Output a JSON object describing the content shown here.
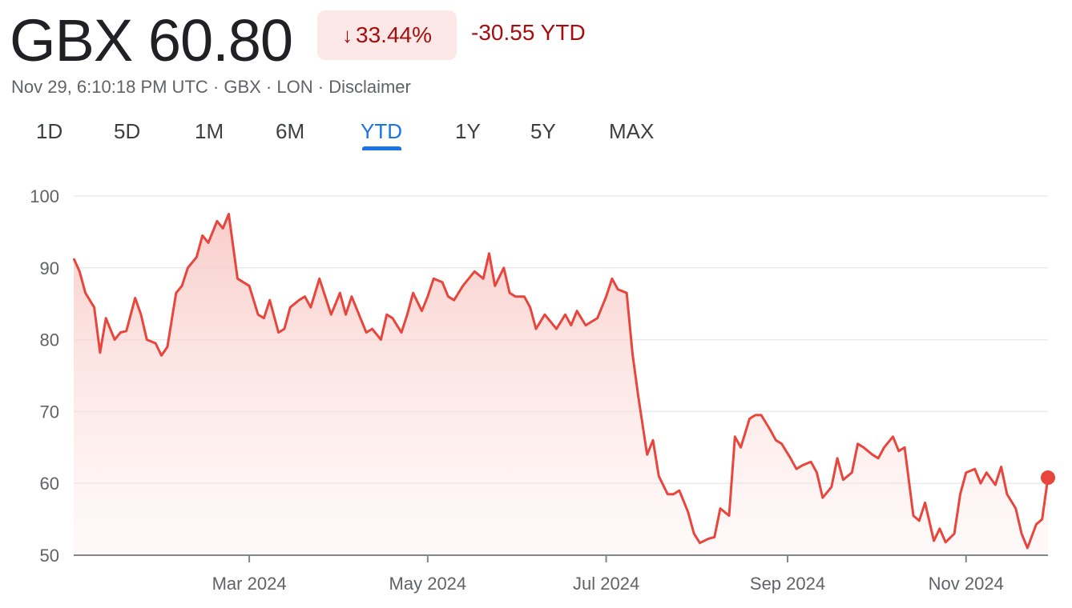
{
  "quote": {
    "price": "GBX 60.80",
    "change_pct": "33.44%",
    "change_arrow": "↓",
    "change_abs": "-30.55 YTD",
    "timestamp": "Nov 29, 6:10:18 PM UTC",
    "currency": "GBX",
    "exchange": "LON",
    "disclaimer": "Disclaimer",
    "separator": " · "
  },
  "tabs": [
    {
      "label": "1D",
      "active": false
    },
    {
      "label": "5D",
      "active": false
    },
    {
      "label": "1M",
      "active": false
    },
    {
      "label": "6M",
      "active": false
    },
    {
      "label": "YTD",
      "active": true
    },
    {
      "label": "1Y",
      "active": false
    },
    {
      "label": "5Y",
      "active": false
    },
    {
      "label": "MAX",
      "active": false
    }
  ],
  "colors": {
    "line": "#e8453c",
    "fill_top": "#f8c8c4",
    "grid": "#e8eaed",
    "axis": "#80868b",
    "negative": "#a50e0e",
    "accent": "#1a73e8"
  },
  "chart_data": {
    "type": "area",
    "ylim": [
      50,
      100
    ],
    "yticks": [
      50,
      60,
      70,
      80,
      90,
      100
    ],
    "xlim": [
      "2024-01-01",
      "2024-11-29"
    ],
    "xticks": [
      {
        "label": "Mar 2024",
        "date": "2024-03-01"
      },
      {
        "label": "May 2024",
        "date": "2024-05-01"
      },
      {
        "label": "Jul 2024",
        "date": "2024-07-01"
      },
      {
        "label": "Sep 2024",
        "date": "2024-09-01"
      },
      {
        "label": "Nov 2024",
        "date": "2024-11-01"
      }
    ],
    "series": [
      {
        "points": [
          [
            "2024-01-01",
            91.3
          ],
          [
            "2024-01-03",
            89.5
          ],
          [
            "2024-01-05",
            86.5
          ],
          [
            "2024-01-08",
            84.5
          ],
          [
            "2024-01-10",
            78.2
          ],
          [
            "2024-01-12",
            83.0
          ],
          [
            "2024-01-15",
            80.0
          ],
          [
            "2024-01-17",
            81.0
          ],
          [
            "2024-01-19",
            81.2
          ],
          [
            "2024-01-22",
            85.8
          ],
          [
            "2024-01-24",
            83.5
          ],
          [
            "2024-01-26",
            80.0
          ],
          [
            "2024-01-29",
            79.5
          ],
          [
            "2024-01-31",
            77.8
          ],
          [
            "2024-02-02",
            79.0
          ],
          [
            "2024-02-05",
            86.5
          ],
          [
            "2024-02-07",
            87.5
          ],
          [
            "2024-02-09",
            90.0
          ],
          [
            "2024-02-12",
            91.5
          ],
          [
            "2024-02-14",
            94.5
          ],
          [
            "2024-02-16",
            93.5
          ],
          [
            "2024-02-19",
            96.5
          ],
          [
            "2024-02-21",
            95.5
          ],
          [
            "2024-02-23",
            97.5
          ],
          [
            "2024-02-26",
            88.5
          ],
          [
            "2024-02-28",
            88.0
          ],
          [
            "2024-03-01",
            87.5
          ],
          [
            "2024-03-04",
            83.5
          ],
          [
            "2024-03-06",
            83.0
          ],
          [
            "2024-03-08",
            85.5
          ],
          [
            "2024-03-11",
            81.0
          ],
          [
            "2024-03-13",
            81.5
          ],
          [
            "2024-03-15",
            84.5
          ],
          [
            "2024-03-18",
            85.5
          ],
          [
            "2024-03-20",
            86.0
          ],
          [
            "2024-03-22",
            84.5
          ],
          [
            "2024-03-25",
            88.5
          ],
          [
            "2024-03-27",
            86.0
          ],
          [
            "2024-03-29",
            83.5
          ],
          [
            "2024-04-01",
            86.5
          ],
          [
            "2024-04-03",
            83.5
          ],
          [
            "2024-04-05",
            86.0
          ],
          [
            "2024-04-08",
            83.0
          ],
          [
            "2024-04-10",
            81.0
          ],
          [
            "2024-04-12",
            81.5
          ],
          [
            "2024-04-15",
            80.0
          ],
          [
            "2024-04-17",
            83.5
          ],
          [
            "2024-04-19",
            83.0
          ],
          [
            "2024-04-22",
            81.0
          ],
          [
            "2024-04-24",
            83.5
          ],
          [
            "2024-04-26",
            86.5
          ],
          [
            "2024-04-29",
            84.0
          ],
          [
            "2024-05-01",
            86.0
          ],
          [
            "2024-05-03",
            88.5
          ],
          [
            "2024-05-06",
            88.0
          ],
          [
            "2024-05-08",
            86.0
          ],
          [
            "2024-05-10",
            85.5
          ],
          [
            "2024-05-13",
            87.5
          ],
          [
            "2024-05-15",
            88.5
          ],
          [
            "2024-05-17",
            89.5
          ],
          [
            "2024-05-20",
            88.5
          ],
          [
            "2024-05-22",
            92.0
          ],
          [
            "2024-05-24",
            87.5
          ],
          [
            "2024-05-27",
            90.0
          ],
          [
            "2024-05-29",
            86.5
          ],
          [
            "2024-05-31",
            86.0
          ],
          [
            "2024-06-03",
            86.0
          ],
          [
            "2024-06-05",
            84.5
          ],
          [
            "2024-06-07",
            81.5
          ],
          [
            "2024-06-10",
            83.5
          ],
          [
            "2024-06-12",
            82.5
          ],
          [
            "2024-06-14",
            81.5
          ],
          [
            "2024-06-17",
            83.5
          ],
          [
            "2024-06-19",
            82.0
          ],
          [
            "2024-06-21",
            84.0
          ],
          [
            "2024-06-24",
            82.0
          ],
          [
            "2024-06-26",
            82.5
          ],
          [
            "2024-06-28",
            83.0
          ],
          [
            "2024-07-01",
            86.0
          ],
          [
            "2024-07-03",
            88.5
          ],
          [
            "2024-07-05",
            87.0
          ],
          [
            "2024-07-08",
            86.5
          ],
          [
            "2024-07-10",
            78.0
          ],
          [
            "2024-07-12",
            72.0
          ],
          [
            "2024-07-15",
            64.0
          ],
          [
            "2024-07-17",
            66.0
          ],
          [
            "2024-07-19",
            61.0
          ],
          [
            "2024-07-22",
            58.5
          ],
          [
            "2024-07-24",
            58.5
          ],
          [
            "2024-07-26",
            59.0
          ],
          [
            "2024-07-29",
            56.0
          ],
          [
            "2024-07-31",
            53.0
          ],
          [
            "2024-08-02",
            51.7
          ],
          [
            "2024-08-05",
            52.3
          ],
          [
            "2024-08-07",
            52.5
          ],
          [
            "2024-08-09",
            56.5
          ],
          [
            "2024-08-12",
            55.5
          ],
          [
            "2024-08-14",
            66.5
          ],
          [
            "2024-08-16",
            65.0
          ],
          [
            "2024-08-19",
            69.0
          ],
          [
            "2024-08-21",
            69.5
          ],
          [
            "2024-08-23",
            69.5
          ],
          [
            "2024-08-26",
            67.5
          ],
          [
            "2024-08-28",
            66.0
          ],
          [
            "2024-08-30",
            65.5
          ],
          [
            "2024-09-02",
            63.5
          ],
          [
            "2024-09-04",
            62.0
          ],
          [
            "2024-09-06",
            62.5
          ],
          [
            "2024-09-09",
            63.0
          ],
          [
            "2024-09-11",
            61.5
          ],
          [
            "2024-09-13",
            58.0
          ],
          [
            "2024-09-16",
            59.5
          ],
          [
            "2024-09-18",
            63.5
          ],
          [
            "2024-09-20",
            60.5
          ],
          [
            "2024-09-23",
            61.5
          ],
          [
            "2024-09-25",
            65.5
          ],
          [
            "2024-09-27",
            65.0
          ],
          [
            "2024-09-30",
            64.0
          ],
          [
            "2024-10-02",
            63.5
          ],
          [
            "2024-10-04",
            65.0
          ],
          [
            "2024-10-07",
            66.5
          ],
          [
            "2024-10-09",
            64.5
          ],
          [
            "2024-10-11",
            65.0
          ],
          [
            "2024-10-14",
            55.5
          ],
          [
            "2024-10-16",
            54.8
          ],
          [
            "2024-10-18",
            57.3
          ],
          [
            "2024-10-21",
            52.0
          ],
          [
            "2024-10-23",
            53.7
          ],
          [
            "2024-10-25",
            51.8
          ],
          [
            "2024-10-28",
            53.0
          ],
          [
            "2024-10-30",
            58.5
          ],
          [
            "2024-11-01",
            61.5
          ],
          [
            "2024-11-04",
            62.0
          ],
          [
            "2024-11-06",
            60.0
          ],
          [
            "2024-11-08",
            61.5
          ],
          [
            "2024-11-11",
            59.8
          ],
          [
            "2024-11-13",
            62.3
          ],
          [
            "2024-11-15",
            58.5
          ],
          [
            "2024-11-18",
            56.5
          ],
          [
            "2024-11-20",
            53.0
          ],
          [
            "2024-11-22",
            51.0
          ],
          [
            "2024-11-25",
            54.3
          ],
          [
            "2024-11-27",
            55.0
          ],
          [
            "2024-11-29",
            60.8
          ]
        ]
      }
    ],
    "last_point": {
      "date": "2024-11-29",
      "value": 60.8
    }
  }
}
